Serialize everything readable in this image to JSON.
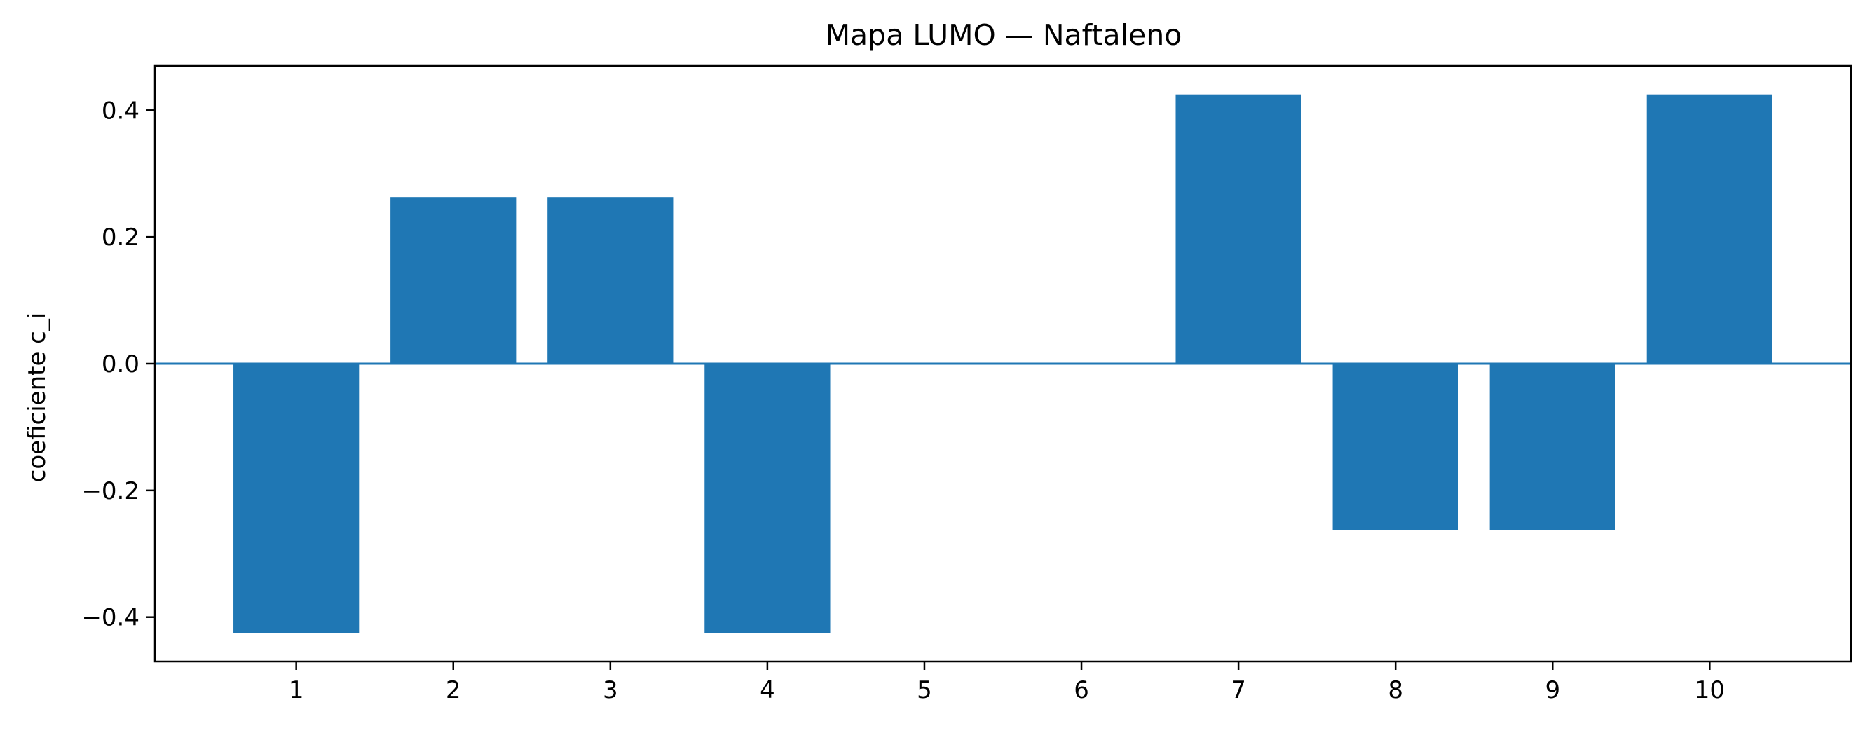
{
  "chart_data": {
    "type": "bar",
    "title": "Mapa LUMO — Naftaleno",
    "xlabel": "",
    "ylabel": "coeficiente c_i",
    "categories": [
      "1",
      "2",
      "3",
      "4",
      "5",
      "6",
      "7",
      "8",
      "9",
      "10"
    ],
    "values": [
      -0.425,
      0.263,
      0.263,
      -0.425,
      0.0,
      0.0,
      0.425,
      -0.263,
      -0.263,
      0.425
    ],
    "ylim": [
      -0.47,
      0.47
    ],
    "yticks": [
      0.4,
      0.2,
      0.0,
      -0.2,
      -0.4
    ],
    "ytick_labels": [
      "0.4",
      "0.2",
      "0.0",
      "−0.2",
      "−0.4"
    ],
    "bar_color": "#1f77b4",
    "zero_line_color": "#1f77b4",
    "grid": false,
    "legend": "none"
  }
}
